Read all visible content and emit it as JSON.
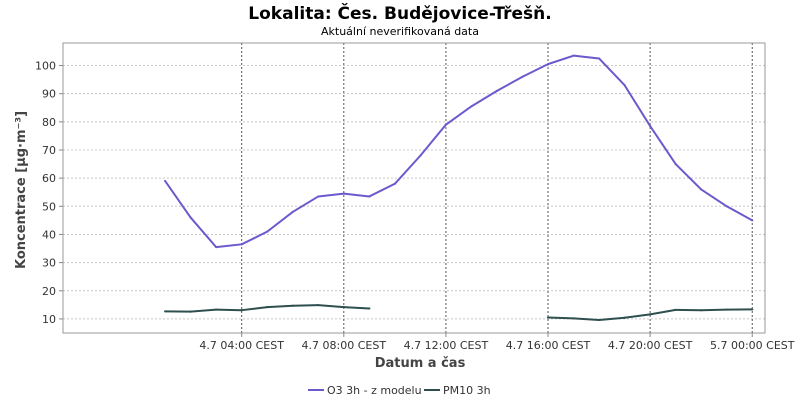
{
  "chart_data": {
    "type": "line",
    "title": "Lokalita: Čes. Budějovice-Třešň.",
    "subtitle": "Aktuální neverifikovaná data",
    "xlabel": "Datum a čas",
    "ylabel": "Koncentrace [µg·m⁻³]",
    "xlim_hours_rel": [
      -3.0,
      24.5
    ],
    "ylim": [
      5,
      108
    ],
    "yticks": [
      10,
      20,
      30,
      40,
      50,
      60,
      70,
      80,
      90,
      100
    ],
    "xticks": [
      {
        "label": "4.7 04:00 CEST",
        "hour": 4
      },
      {
        "label": "4.7 08:00 CEST",
        "hour": 8
      },
      {
        "label": "4.7 12:00 CEST",
        "hour": 12
      },
      {
        "label": "4.7 16:00 CEST",
        "hour": 16
      },
      {
        "label": "4.7 20:00 CEST",
        "hour": 20
      },
      {
        "label": "5.7 00:00 CEST",
        "hour": 24
      }
    ],
    "grid": true,
    "legend_position": "bottom-center",
    "colors": {
      "o3": "#6a5acd",
      "pm10": "#2f4f4f"
    },
    "series": [
      {
        "name": "O3 3h - z modelu",
        "color": "#6a5acd",
        "points": [
          {
            "hour": 1,
            "value": 59
          },
          {
            "hour": 2,
            "value": 46
          },
          {
            "hour": 3,
            "value": 35.5
          },
          {
            "hour": 4,
            "value": 36.5
          },
          {
            "hour": 5,
            "value": 41
          },
          {
            "hour": 6,
            "value": 48
          },
          {
            "hour": 7,
            "value": 53.5
          },
          {
            "hour": 8,
            "value": 54.5
          },
          {
            "hour": 9,
            "value": 53.5
          },
          {
            "hour": 10,
            "value": 58
          },
          {
            "hour": 11,
            "value": 68
          },
          {
            "hour": 12,
            "value": 79
          },
          {
            "hour": 13,
            "value": 85.5
          },
          {
            "hour": 14,
            "value": 91
          },
          {
            "hour": 15,
            "value": 96
          },
          {
            "hour": 16,
            "value": 100.5
          },
          {
            "hour": 17,
            "value": 103.5
          },
          {
            "hour": 18,
            "value": 102.5
          },
          {
            "hour": 19,
            "value": 93
          },
          {
            "hour": 20,
            "value": 78.5
          },
          {
            "hour": 21,
            "value": 65
          },
          {
            "hour": 22,
            "value": 56
          },
          {
            "hour": 23,
            "value": 50
          },
          {
            "hour": 24,
            "value": 45
          }
        ]
      },
      {
        "name": "PM10 3h",
        "color": "#2f4f4f",
        "points": [
          {
            "hour": 1,
            "value": 12.7
          },
          {
            "hour": 2,
            "value": 12.6
          },
          {
            "hour": 3,
            "value": 13.3
          },
          {
            "hour": 4,
            "value": 13.1
          },
          {
            "hour": 5,
            "value": 14.2
          },
          {
            "hour": 6,
            "value": 14.7
          },
          {
            "hour": 7,
            "value": 14.9
          },
          {
            "hour": 8,
            "value": 14.2
          },
          {
            "hour": 9,
            "value": 13.7
          },
          {
            "hour": 16,
            "value": 10.5
          },
          {
            "hour": 17,
            "value": 10.2
          },
          {
            "hour": 18,
            "value": 9.6
          },
          {
            "hour": 19,
            "value": 10.4
          },
          {
            "hour": 20,
            "value": 11.6
          },
          {
            "hour": 21,
            "value": 13.2
          },
          {
            "hour": 22,
            "value": 13.1
          },
          {
            "hour": 23,
            "value": 13.3
          },
          {
            "hour": 24,
            "value": 13.4
          }
        ]
      }
    ]
  }
}
